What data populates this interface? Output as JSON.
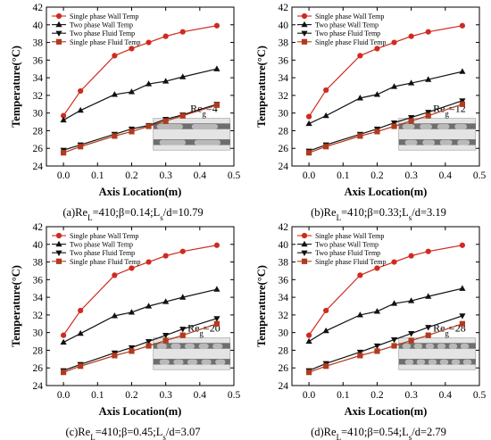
{
  "figure": {
    "background": "#ffffff"
  },
  "colors": {
    "single_wall": "#d02a1e",
    "two_wall": "#111111",
    "two_fluid": "#111111",
    "single_fluid": "#b23a1e",
    "channel_light": "#e4e4e4",
    "channel_dark": "#6e6e6e",
    "slug": "#b9b9b9"
  },
  "chart_data": [
    {
      "type": "line",
      "caption": "(a)Re_L=410;β=0.14;L_s/d=10.79",
      "caption_parts": {
        "prefix": "(a)Re",
        "sub1": "L",
        "mid": "=410;β=0.14;L",
        "sub2": "s",
        "suffix": "/d=10.79"
      },
      "annotation": {
        "text": "Re",
        "sub": "g",
        "value": "=4"
      },
      "xlabel": "Axis Location(m)",
      "ylabel": "Temperature(°C)",
      "xlim": [
        -0.05,
        0.5
      ],
      "ylim": [
        24,
        42
      ],
      "xticks": [
        "0.0",
        "0.1",
        "0.2",
        "0.3",
        "0.4",
        "0.5"
      ],
      "yticks": [
        "24",
        "26",
        "28",
        "30",
        "32",
        "34",
        "36",
        "38",
        "40",
        "42"
      ],
      "legend_position": "top-left",
      "series": [
        {
          "name": "Single phase Wall Temp",
          "marker": "circle",
          "color": "single_wall",
          "x": [
            0,
            0.05,
            0.15,
            0.2,
            0.25,
            0.3,
            0.35,
            0.45
          ],
          "y": [
            29.7,
            32.5,
            36.5,
            37.3,
            38.0,
            38.7,
            39.2,
            39.9
          ]
        },
        {
          "name": "Two phase Wall Temp",
          "marker": "triangle-up",
          "color": "two_wall",
          "x": [
            0,
            0.05,
            0.15,
            0.2,
            0.25,
            0.3,
            0.35,
            0.45
          ],
          "y": [
            29.2,
            30.3,
            32.1,
            32.4,
            33.3,
            33.6,
            34.1,
            35.0
          ]
        },
        {
          "name": "Two phase Fluid Temp",
          "marker": "triangle-down",
          "color": "two_fluid",
          "x": [
            0,
            0.05,
            0.15,
            0.2,
            0.25,
            0.3,
            0.35,
            0.45
          ],
          "y": [
            25.8,
            26.4,
            27.6,
            28.2,
            28.6,
            29.3,
            29.8,
            31.0
          ]
        },
        {
          "name": "Single phase Fluid Temp",
          "marker": "square",
          "color": "single_fluid",
          "x": [
            0,
            0.05,
            0.15,
            0.2,
            0.25,
            0.3,
            0.35,
            0.45
          ],
          "y": [
            25.5,
            26.2,
            27.4,
            27.9,
            28.5,
            29.1,
            29.7,
            30.9
          ]
        }
      ]
    },
    {
      "type": "line",
      "caption": "(b)Re_L=410;β=0.33;L_s/d=3.19",
      "caption_parts": {
        "prefix": "(b)Re",
        "sub1": "L",
        "mid": "=410;β=0.33;L",
        "sub2": "s",
        "suffix": "/d=3.19"
      },
      "annotation": {
        "text": "Re",
        "sub": "g",
        "value": "=12"
      },
      "xlabel": "Axis Location(m)",
      "ylabel": "Temperature(°C)",
      "xlim": [
        -0.05,
        0.5
      ],
      "ylim": [
        24,
        42
      ],
      "xticks": [
        "0.0",
        "0.1",
        "0.2",
        "0.3",
        "0.4",
        "0.5"
      ],
      "yticks": [
        "24",
        "26",
        "28",
        "30",
        "32",
        "34",
        "36",
        "38",
        "40",
        "42"
      ],
      "legend_position": "top-left",
      "series": [
        {
          "name": "Single phase Wall Temp",
          "marker": "circle",
          "color": "single_wall",
          "x": [
            0,
            0.05,
            0.15,
            0.2,
            0.25,
            0.3,
            0.35,
            0.45
          ],
          "y": [
            29.6,
            32.6,
            36.5,
            37.3,
            38.0,
            38.7,
            39.2,
            39.9
          ]
        },
        {
          "name": "Two phase Wall Temp",
          "marker": "triangle-up",
          "color": "two_wall",
          "x": [
            0,
            0.05,
            0.15,
            0.2,
            0.25,
            0.3,
            0.35,
            0.45
          ],
          "y": [
            28.8,
            29.7,
            31.7,
            32.1,
            33.0,
            33.4,
            33.8,
            34.7
          ]
        },
        {
          "name": "Two phase Fluid Temp",
          "marker": "triangle-down",
          "color": "two_fluid",
          "x": [
            0,
            0.05,
            0.15,
            0.2,
            0.25,
            0.3,
            0.35,
            0.45
          ],
          "y": [
            25.7,
            26.4,
            27.6,
            28.2,
            28.9,
            29.5,
            30.1,
            31.4
          ]
        },
        {
          "name": "Single phase Fluid Temp",
          "marker": "square",
          "color": "single_fluid",
          "x": [
            0,
            0.05,
            0.15,
            0.2,
            0.25,
            0.3,
            0.35,
            0.45
          ],
          "y": [
            25.5,
            26.2,
            27.4,
            27.9,
            28.5,
            29.1,
            29.7,
            31.0
          ]
        }
      ]
    },
    {
      "type": "line",
      "caption": "(c)Re_L=410;β=0.45;L_s/d=3.07",
      "caption_parts": {
        "prefix": "(c)Re",
        "sub1": "L",
        "mid": "=410;β=0.45;L",
        "sub2": "s",
        "suffix": "/d=3.07"
      },
      "annotation": {
        "text": "Re",
        "sub": "g",
        "value": "=20"
      },
      "xlabel": "Axis Location(m)",
      "ylabel": "Temperature(°C)",
      "xlim": [
        -0.05,
        0.5
      ],
      "ylim": [
        24,
        42
      ],
      "xticks": [
        "0.0",
        "0.1",
        "0.2",
        "0.3",
        "0.4",
        "0.5"
      ],
      "yticks": [
        "24",
        "26",
        "28",
        "30",
        "32",
        "34",
        "36",
        "38",
        "40",
        "42"
      ],
      "legend_position": "top-left",
      "series": [
        {
          "name": "Single phase Wall Temp",
          "marker": "circle",
          "color": "single_wall",
          "x": [
            0,
            0.05,
            0.15,
            0.2,
            0.25,
            0.3,
            0.35,
            0.45
          ],
          "y": [
            29.7,
            32.5,
            36.5,
            37.3,
            38.0,
            38.7,
            39.2,
            39.9
          ]
        },
        {
          "name": "Two phase Wall Temp",
          "marker": "triangle-up",
          "color": "two_wall",
          "x": [
            0,
            0.05,
            0.15,
            0.2,
            0.25,
            0.3,
            0.35,
            0.45
          ],
          "y": [
            28.9,
            29.9,
            31.9,
            32.3,
            33.0,
            33.5,
            34.0,
            34.9
          ]
        },
        {
          "name": "Two phase Fluid Temp",
          "marker": "triangle-down",
          "color": "two_fluid",
          "x": [
            0,
            0.05,
            0.15,
            0.2,
            0.25,
            0.3,
            0.35,
            0.45
          ],
          "y": [
            25.7,
            26.4,
            27.7,
            28.3,
            29.0,
            29.7,
            30.4,
            31.6
          ]
        },
        {
          "name": "Single phase Fluid Temp",
          "marker": "square",
          "color": "single_fluid",
          "x": [
            0,
            0.05,
            0.15,
            0.2,
            0.25,
            0.3,
            0.35,
            0.45
          ],
          "y": [
            25.5,
            26.2,
            27.4,
            27.9,
            28.5,
            29.1,
            29.7,
            31.0
          ]
        }
      ]
    },
    {
      "type": "line",
      "caption": "(d)Re_L=410;β=0.54;L_s/d=2.79",
      "caption_parts": {
        "prefix": "(d)Re",
        "sub1": "L",
        "mid": "=410;β=0.54;L",
        "sub2": "s",
        "suffix": "/d=2.79"
      },
      "annotation": {
        "text": "Re",
        "sub": "g",
        "value": "=28"
      },
      "xlabel": "Axis Location(m)",
      "ylabel": "Temperature(°C)",
      "xlim": [
        -0.05,
        0.5
      ],
      "ylim": [
        24,
        42
      ],
      "xticks": [
        "0.0",
        "0.1",
        "0.2",
        "0.3",
        "0.4",
        "0.5"
      ],
      "yticks": [
        "24",
        "26",
        "28",
        "30",
        "32",
        "34",
        "36",
        "38",
        "40",
        "42"
      ],
      "legend_position": "top-left",
      "series": [
        {
          "name": "Single phase Wall Temp",
          "marker": "circle",
          "color": "single_wall",
          "x": [
            0,
            0.05,
            0.15,
            0.2,
            0.25,
            0.3,
            0.35,
            0.45
          ],
          "y": [
            29.7,
            32.5,
            36.5,
            37.3,
            38.0,
            38.7,
            39.2,
            39.9
          ]
        },
        {
          "name": "Two phase Wall Temp",
          "marker": "triangle-up",
          "color": "two_wall",
          "x": [
            0,
            0.05,
            0.15,
            0.2,
            0.25,
            0.3,
            0.35,
            0.45
          ],
          "y": [
            29.0,
            30.2,
            32.0,
            32.4,
            33.3,
            33.6,
            34.1,
            35.0
          ]
        },
        {
          "name": "Two phase Fluid Temp",
          "marker": "triangle-down",
          "color": "two_fluid",
          "x": [
            0,
            0.05,
            0.15,
            0.2,
            0.25,
            0.3,
            0.35,
            0.45
          ],
          "y": [
            25.7,
            26.5,
            27.8,
            28.5,
            29.2,
            29.9,
            30.6,
            31.9
          ]
        },
        {
          "name": "Single phase Fluid Temp",
          "marker": "square",
          "color": "single_fluid",
          "x": [
            0,
            0.05,
            0.15,
            0.2,
            0.25,
            0.3,
            0.35,
            0.45
          ],
          "y": [
            25.5,
            26.2,
            27.4,
            27.9,
            28.5,
            29.1,
            29.7,
            31.0
          ]
        }
      ]
    }
  ]
}
